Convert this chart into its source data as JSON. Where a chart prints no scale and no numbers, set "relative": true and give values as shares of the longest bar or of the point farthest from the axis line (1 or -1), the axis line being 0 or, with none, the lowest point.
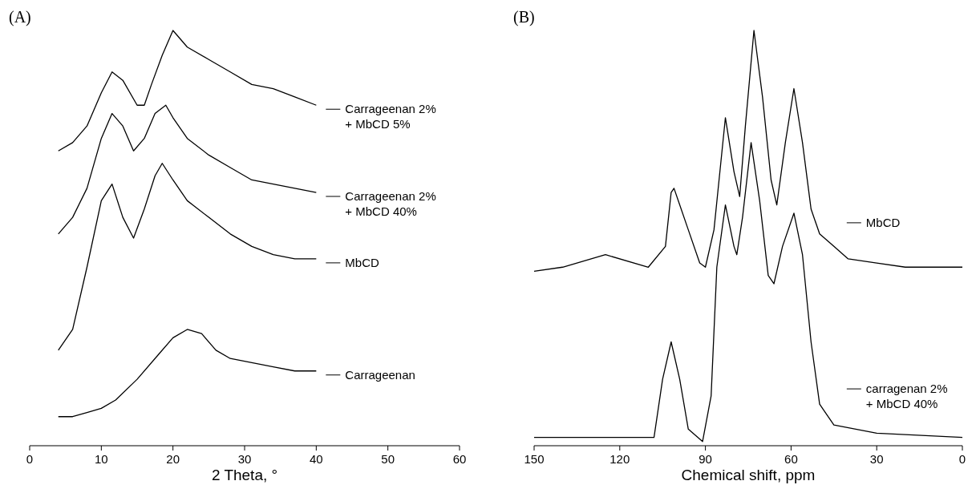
{
  "chart_data": [
    {
      "type": "line",
      "title": "(A)",
      "xlabel": "2 Theta, °",
      "relative": true,
      "xlim": [
        0,
        60
      ],
      "xticks": [
        0,
        10,
        20,
        30,
        40,
        50,
        60
      ],
      "legend": "right",
      "series": [
        {
          "name": "Carrageenan 2%\n+ MbCD 5%",
          "color": "#000000",
          "x": [
            4,
            6,
            8,
            10,
            11.5,
            13,
            15,
            16,
            17,
            18.5,
            20,
            22,
            25,
            28,
            31,
            34,
            37,
            40
          ],
          "values": [
            0.71,
            0.73,
            0.77,
            0.85,
            0.9,
            0.88,
            0.82,
            0.82,
            0.87,
            0.94,
            1.0,
            0.96,
            0.93,
            0.9,
            0.87,
            0.86,
            0.84,
            0.82
          ]
        },
        {
          "name": "Carrageenan 2%\n+ MbCD 40%",
          "color": "#000000",
          "x": [
            4,
            6,
            8,
            10,
            11.5,
            13,
            14.5,
            16,
            17.5,
            19,
            20,
            22,
            25,
            28,
            31,
            34,
            37,
            40
          ],
          "values": [
            0.51,
            0.55,
            0.62,
            0.74,
            0.8,
            0.77,
            0.71,
            0.74,
            0.8,
            0.82,
            0.79,
            0.74,
            0.7,
            0.67,
            0.64,
            0.63,
            0.62,
            0.61
          ]
        },
        {
          "name": "MbCD",
          "color": "#000000",
          "x": [
            4,
            6,
            8,
            10,
            11.5,
            13,
            14.5,
            16,
            17.5,
            18.5,
            20,
            22,
            25,
            28,
            31,
            34,
            37,
            40
          ],
          "values": [
            0.23,
            0.28,
            0.43,
            0.59,
            0.63,
            0.55,
            0.5,
            0.57,
            0.65,
            0.68,
            0.64,
            0.59,
            0.55,
            0.51,
            0.48,
            0.46,
            0.45,
            0.45
          ]
        },
        {
          "name": "Carrageenan",
          "color": "#000000",
          "x": [
            4,
            6,
            8,
            10,
            12,
            15,
            18,
            20,
            22,
            24,
            26,
            28,
            31,
            34,
            37,
            40
          ],
          "values": [
            0.07,
            0.07,
            0.08,
            0.09,
            0.11,
            0.16,
            0.22,
            0.26,
            0.28,
            0.27,
            0.23,
            0.21,
            0.2,
            0.19,
            0.18,
            0.18
          ]
        }
      ]
    },
    {
      "type": "line",
      "title": "(B)",
      "xlabel": "Chemical shift, ppm",
      "relative": true,
      "xlim": [
        150,
        0
      ],
      "xticks": [
        150,
        120,
        90,
        60,
        30,
        0
      ],
      "legend": "right",
      "series": [
        {
          "name": "MbCD",
          "color": "#000000",
          "x": [
            150,
            140,
            125,
            110,
            104,
            102,
            101,
            96,
            92,
            90,
            87,
            83,
            80,
            78,
            76,
            73,
            70,
            67,
            65,
            62,
            59,
            56,
            53,
            50,
            45,
            40,
            30,
            20,
            10,
            0
          ],
          "values": [
            0.42,
            0.43,
            0.46,
            0.43,
            0.48,
            0.61,
            0.62,
            0.52,
            0.44,
            0.43,
            0.52,
            0.79,
            0.66,
            0.6,
            0.77,
            1.0,
            0.84,
            0.64,
            0.58,
            0.73,
            0.86,
            0.73,
            0.57,
            0.51,
            0.48,
            0.45,
            0.44,
            0.43,
            0.43,
            0.43
          ]
        },
        {
          "name": "carragenan 2%\n+ MbCD 40%",
          "color": "#000000",
          "x": [
            150,
            130,
            108,
            105,
            102,
            99,
            96,
            91,
            88,
            86,
            83,
            80,
            79,
            77,
            74,
            71,
            68,
            66,
            63,
            59,
            56,
            53,
            50,
            45,
            30,
            0
          ],
          "values": [
            0.02,
            0.02,
            0.02,
            0.16,
            0.25,
            0.16,
            0.04,
            0.01,
            0.12,
            0.43,
            0.58,
            0.48,
            0.46,
            0.55,
            0.73,
            0.59,
            0.41,
            0.39,
            0.48,
            0.56,
            0.46,
            0.25,
            0.1,
            0.05,
            0.03,
            0.02
          ]
        }
      ]
    }
  ]
}
